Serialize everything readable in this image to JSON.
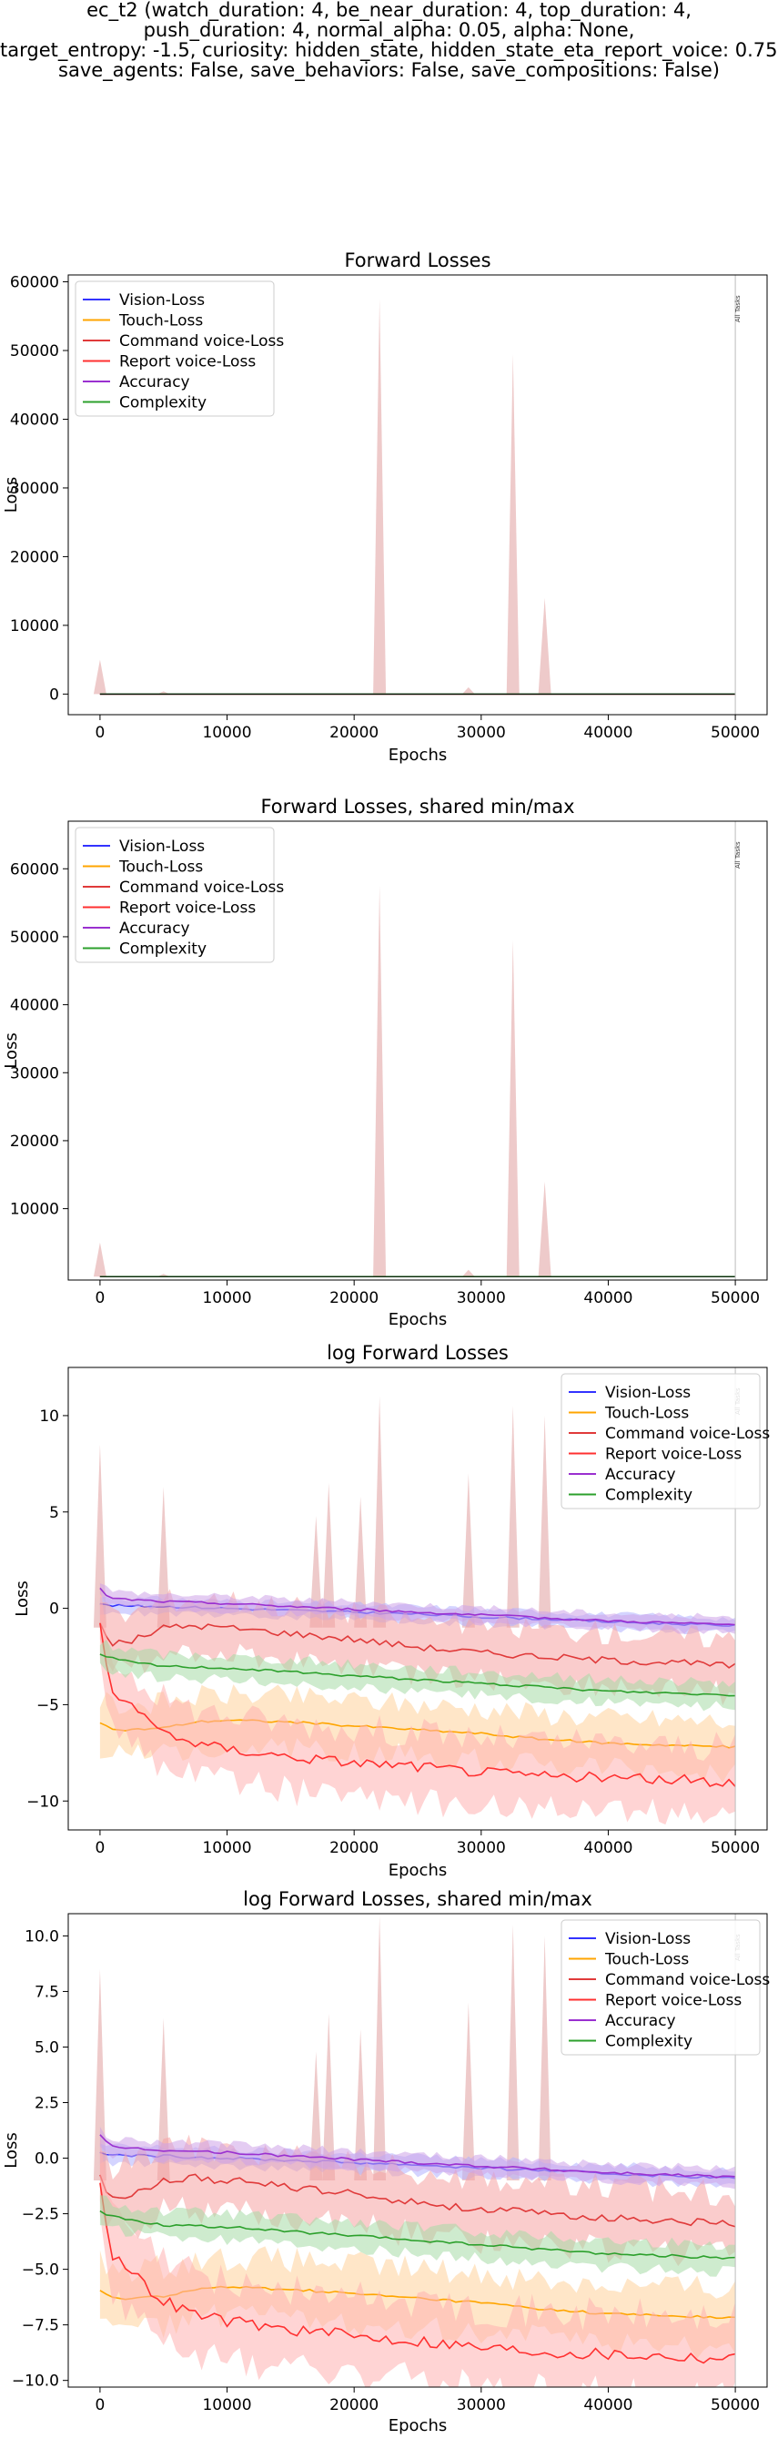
{
  "suptitle_lines": [
    "ec_t2 (watch_duration: 4, be_near_duration: 4, top_duration: 4,",
    "push_duration: 4, normal_alpha: 0.05, alpha: None,",
    "target_entropy: -1.5, curiosity: hidden_state, hidden_state_eta_report_voice: 0.75,",
    "save_agents: False, save_behaviors: False, save_compositions: False)"
  ],
  "colors": {
    "Vision-Loss": "#3333ff",
    "Touch-Loss": "#ffa500",
    "Command voice-Loss": "#e03a3a",
    "Report voice-Loss": "#ff3030",
    "Accuracy": "#9a30d0",
    "Complexity": "#2ca02c",
    "spike": "#e8b8b8"
  },
  "annotation": "All Tasks",
  "chart_data": [
    {
      "type": "line",
      "title": "Forward Losses",
      "xlabel": "Epochs",
      "ylabel": "Loss",
      "scale": "linear",
      "xlim": [
        -2500,
        52500
      ],
      "ylim": [
        -3000,
        61000
      ],
      "xticks": [
        0,
        10000,
        20000,
        30000,
        40000,
        50000
      ],
      "xtick_labels": [
        "0",
        "10000",
        "20000",
        "30000",
        "40000",
        "50000"
      ],
      "yticks": [
        0,
        10000,
        20000,
        30000,
        40000,
        50000,
        60000
      ],
      "ytick_labels": [
        "0",
        "10000",
        "20000",
        "30000",
        "40000",
        "50000",
        "60000"
      ],
      "legend": [
        "Vision-Loss",
        "Touch-Loss",
        "Command voice-Loss",
        "Report voice-Loss",
        "Accuracy",
        "Complexity"
      ],
      "legend_position": "top-left",
      "vline_x": 50000,
      "spikes": [
        {
          "x": 0,
          "y": 5000
        },
        {
          "x": 5000,
          "y": 400
        },
        {
          "x": 22000,
          "y": 57500
        },
        {
          "x": 29000,
          "y": 1000
        },
        {
          "x": 32500,
          "y": 49500
        },
        {
          "x": 35000,
          "y": 14000
        }
      ]
    },
    {
      "type": "line",
      "title": "Forward Losses, shared min/max",
      "xlabel": "Epochs",
      "ylabel": "Loss",
      "scale": "linear",
      "xlim": [
        -2500,
        52500
      ],
      "ylim": [
        -500,
        67000
      ],
      "xticks": [
        0,
        10000,
        20000,
        30000,
        40000,
        50000
      ],
      "xtick_labels": [
        "0",
        "10000",
        "20000",
        "30000",
        "40000",
        "50000"
      ],
      "yticks": [
        10000,
        20000,
        30000,
        40000,
        50000,
        60000
      ],
      "ytick_labels": [
        "10000",
        "20000",
        "30000",
        "40000",
        "50000",
        "60000"
      ],
      "legend": [
        "Vision-Loss",
        "Touch-Loss",
        "Command voice-Loss",
        "Report voice-Loss",
        "Accuracy",
        "Complexity"
      ],
      "legend_position": "top-left",
      "vline_x": 50000,
      "spikes": [
        {
          "x": 0,
          "y": 5000
        },
        {
          "x": 5000,
          "y": 400
        },
        {
          "x": 22000,
          "y": 57500
        },
        {
          "x": 29000,
          "y": 1000
        },
        {
          "x": 32500,
          "y": 49500
        },
        {
          "x": 35000,
          "y": 14000
        }
      ]
    },
    {
      "type": "line",
      "title": "log Forward Losses",
      "xlabel": "Epochs",
      "ylabel": "Loss",
      "scale": "log",
      "xlim": [
        -2500,
        52500
      ],
      "ylim": [
        -11.5,
        12.5
      ],
      "xticks": [
        0,
        10000,
        20000,
        30000,
        40000,
        50000
      ],
      "xtick_labels": [
        "0",
        "10000",
        "20000",
        "30000",
        "40000",
        "50000"
      ],
      "yticks": [
        -10,
        -5,
        0,
        5,
        10
      ],
      "ytick_labels": [
        "−10",
        "−5",
        "0",
        "5",
        "10"
      ],
      "legend": [
        "Vision-Loss",
        "Touch-Loss",
        "Command voice-Loss",
        "Report voice-Loss",
        "Accuracy",
        "Complexity"
      ],
      "legend_position": "top-right",
      "vline_x": 50000,
      "spikes": [
        {
          "x": 0,
          "y": 8.5
        },
        {
          "x": 5000,
          "y": 6.3
        },
        {
          "x": 17000,
          "y": 4.8
        },
        {
          "x": 18000,
          "y": 6.5
        },
        {
          "x": 20500,
          "y": 5.8
        },
        {
          "x": 22000,
          "y": 11.0
        },
        {
          "x": 29000,
          "y": 7.0
        },
        {
          "x": 32500,
          "y": 10.5
        },
        {
          "x": 35000,
          "y": 10.0
        }
      ],
      "series": [
        {
          "name": "Vision-Loss",
          "x": [
            0,
            1000,
            2500,
            5000,
            10000,
            15000,
            20000,
            25000,
            30000,
            35000,
            40000,
            45000,
            50000
          ],
          "values": [
            0.2,
            0.15,
            0.12,
            0.1,
            0.0,
            -0.1,
            -0.2,
            -0.3,
            -0.45,
            -0.55,
            -0.7,
            -0.8,
            -0.9
          ]
        },
        {
          "name": "Touch-Loss",
          "x": [
            0,
            1000,
            2500,
            5000,
            7500,
            10000,
            15000,
            20000,
            25000,
            30000,
            35000,
            40000,
            45000,
            50000
          ],
          "values": [
            -6.0,
            -6.3,
            -6.3,
            -6.2,
            -5.9,
            -5.8,
            -5.9,
            -6.1,
            -6.3,
            -6.5,
            -6.8,
            -7.0,
            -7.1,
            -7.2
          ]
        },
        {
          "name": "Command voice-Loss",
          "x": [
            0,
            500,
            1000,
            2500,
            5000,
            7500,
            10000,
            15000,
            20000,
            25000,
            30000,
            35000,
            40000,
            45000,
            50000
          ],
          "values": [
            -0.8,
            -1.5,
            -1.8,
            -1.7,
            -1.0,
            -0.9,
            -1.0,
            -1.3,
            -1.6,
            -2.0,
            -2.3,
            -2.5,
            -2.7,
            -2.8,
            -3.0
          ]
        },
        {
          "name": "Report voice-Loss",
          "x": [
            0,
            500,
            1000,
            2500,
            5000,
            7500,
            10000,
            15000,
            20000,
            25000,
            30000,
            35000,
            40000,
            45000,
            50000
          ],
          "values": [
            -1.0,
            -3.0,
            -4.3,
            -5.2,
            -6.4,
            -7.0,
            -7.3,
            -7.7,
            -8.0,
            -8.2,
            -8.5,
            -8.7,
            -8.8,
            -8.9,
            -9.0
          ]
        },
        {
          "name": "Accuracy",
          "x": [
            0,
            500,
            1000,
            2500,
            5000,
            10000,
            15000,
            20000,
            25000,
            30000,
            35000,
            40000,
            45000,
            50000
          ],
          "values": [
            1.0,
            0.7,
            0.5,
            0.45,
            0.35,
            0.25,
            0.1,
            -0.05,
            -0.2,
            -0.35,
            -0.5,
            -0.65,
            -0.75,
            -0.85
          ]
        },
        {
          "name": "Complexity",
          "x": [
            0,
            1000,
            2500,
            5000,
            10000,
            15000,
            20000,
            25000,
            30000,
            35000,
            40000,
            45000,
            50000
          ],
          "values": [
            -2.4,
            -2.6,
            -2.8,
            -3.0,
            -3.1,
            -3.3,
            -3.5,
            -3.7,
            -3.9,
            -4.1,
            -4.3,
            -4.4,
            -4.5
          ]
        }
      ]
    },
    {
      "type": "line",
      "title": "log Forward Losses, shared min/max",
      "xlabel": "Epochs",
      "ylabel": "Loss",
      "scale": "log",
      "xlim": [
        -2500,
        52500
      ],
      "ylim": [
        -10.3,
        11.0
      ],
      "xticks": [
        0,
        10000,
        20000,
        30000,
        40000,
        50000
      ],
      "xtick_labels": [
        "0",
        "10000",
        "20000",
        "30000",
        "40000",
        "50000"
      ],
      "yticks": [
        -10.0,
        -7.5,
        -5.0,
        -2.5,
        0.0,
        2.5,
        5.0,
        7.5,
        10.0
      ],
      "ytick_labels": [
        "−10.0",
        "−7.5",
        "−5.0",
        "−2.5",
        "0.0",
        "2.5",
        "5.0",
        "7.5",
        "10.0"
      ],
      "legend": [
        "Vision-Loss",
        "Touch-Loss",
        "Command voice-Loss",
        "Report voice-Loss",
        "Accuracy",
        "Complexity"
      ],
      "legend_position": "top-right",
      "vline_x": 50000,
      "spikes": [
        {
          "x": 0,
          "y": 8.5
        },
        {
          "x": 5000,
          "y": 6.3
        },
        {
          "x": 17000,
          "y": 4.8
        },
        {
          "x": 18000,
          "y": 6.5
        },
        {
          "x": 20500,
          "y": 5.8
        },
        {
          "x": 22000,
          "y": 10.9
        },
        {
          "x": 29000,
          "y": 7.0
        },
        {
          "x": 32500,
          "y": 10.5
        },
        {
          "x": 35000,
          "y": 10.0
        }
      ],
      "series": [
        {
          "name": "Vision-Loss",
          "x": [
            0,
            1000,
            2500,
            5000,
            10000,
            15000,
            20000,
            25000,
            30000,
            35000,
            40000,
            45000,
            50000
          ],
          "values": [
            0.2,
            0.15,
            0.12,
            0.1,
            0.0,
            -0.1,
            -0.2,
            -0.3,
            -0.45,
            -0.55,
            -0.7,
            -0.8,
            -0.9
          ]
        },
        {
          "name": "Touch-Loss",
          "x": [
            0,
            1000,
            2500,
            5000,
            7500,
            10000,
            15000,
            20000,
            25000,
            30000,
            35000,
            40000,
            45000,
            50000
          ],
          "values": [
            -6.0,
            -6.3,
            -6.3,
            -6.2,
            -5.9,
            -5.8,
            -5.9,
            -6.1,
            -6.3,
            -6.5,
            -6.8,
            -7.0,
            -7.1,
            -7.2
          ]
        },
        {
          "name": "Command voice-Loss",
          "x": [
            0,
            500,
            1000,
            2500,
            5000,
            7500,
            10000,
            15000,
            20000,
            25000,
            30000,
            35000,
            40000,
            45000,
            50000
          ],
          "values": [
            -0.8,
            -1.5,
            -1.8,
            -1.7,
            -1.0,
            -0.9,
            -1.0,
            -1.3,
            -1.6,
            -2.0,
            -2.3,
            -2.5,
            -2.7,
            -2.8,
            -3.0
          ]
        },
        {
          "name": "Report voice-Loss",
          "x": [
            0,
            500,
            1000,
            2500,
            5000,
            7500,
            10000,
            15000,
            20000,
            25000,
            30000,
            35000,
            40000,
            45000,
            50000
          ],
          "values": [
            -1.0,
            -3.0,
            -4.3,
            -5.2,
            -6.4,
            -7.0,
            -7.3,
            -7.7,
            -8.0,
            -8.2,
            -8.5,
            -8.7,
            -8.8,
            -8.9,
            -9.0
          ]
        },
        {
          "name": "Accuracy",
          "x": [
            0,
            500,
            1000,
            2500,
            5000,
            10000,
            15000,
            20000,
            25000,
            30000,
            35000,
            40000,
            45000,
            50000
          ],
          "values": [
            1.0,
            0.7,
            0.5,
            0.45,
            0.35,
            0.25,
            0.1,
            -0.05,
            -0.2,
            -0.35,
            -0.5,
            -0.65,
            -0.75,
            -0.85
          ]
        },
        {
          "name": "Complexity",
          "x": [
            0,
            1000,
            2500,
            5000,
            10000,
            15000,
            20000,
            25000,
            30000,
            35000,
            40000,
            45000,
            50000
          ],
          "values": [
            -2.4,
            -2.6,
            -2.8,
            -3.0,
            -3.1,
            -3.3,
            -3.5,
            -3.7,
            -3.9,
            -4.1,
            -4.3,
            -4.4,
            -4.5
          ]
        }
      ]
    }
  ]
}
